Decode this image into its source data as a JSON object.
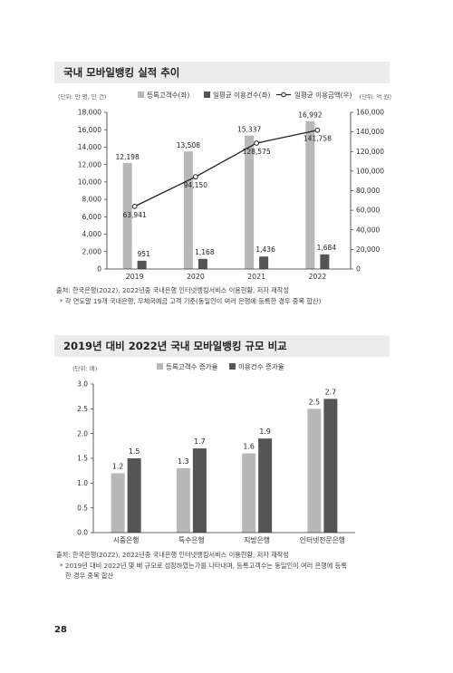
{
  "section1": {
    "title": "국내 모바일뱅킹 실적 추이",
    "source": "출처: 한국은행(2022), 2022년중 국내은행 인터넷뱅킹서비스 이용현황, 저자 재작성",
    "footnote": "* 각 연도말 19개 국내은행, 우체국예금 고객 기준(동일인이 여러 은행에 등록한 경우 중복 합산)"
  },
  "section2": {
    "title": "2019년 대비 2022년 국내 모바일뱅킹 규모 비교",
    "source": "출처: 한국은행(2022), 2022년중 국내은행 인터넷뱅킹서비스 이용현황, 저자 재작성",
    "footnote_line1": "* 2019년 대비 2022년 몇 배 규모로 성장하였는가를 나타내며, 등록고객수는 동일인이 여러 은행에 등록",
    "footnote_line2": "한 경우 중복 합산"
  },
  "page_number": "28",
  "chart_data": [
    {
      "type": "bar",
      "categories": [
        "2019",
        "2020",
        "2021",
        "2022"
      ],
      "series": [
        {
          "name": "등록고객수(좌)",
          "values": [
            12198,
            13508,
            15337,
            16992
          ],
          "labels": [
            "12,198",
            "13,508",
            "15,337",
            "16,992"
          ],
          "color": "#b8b8b8",
          "axis": "left"
        },
        {
          "name": "일평균 이용건수(좌)",
          "values": [
            951,
            1168,
            1436,
            1684
          ],
          "labels": [
            "951",
            "1,168",
            "1,436",
            "1,684"
          ],
          "color": "#555555",
          "axis": "left"
        },
        {
          "name": "일평균 이용금액(우)",
          "type": "line",
          "values": [
            63941,
            94150,
            128575,
            141758
          ],
          "labels": [
            "63,941",
            "94,150",
            "128,575",
            "141,758"
          ],
          "color": "#222222",
          "axis": "right"
        }
      ],
      "ylabel_left": "(단위: 만 명, 만 건)",
      "ylabel_right": "(단위: 억 원)",
      "ylim_left": [
        0,
        18000
      ],
      "ylim_right": [
        0,
        160000
      ],
      "yticks_left": [
        "0",
        "2,000",
        "4,000",
        "6,000",
        "8,000",
        "10,000",
        "12,000",
        "14,000",
        "16,000",
        "18,000"
      ],
      "yticks_right": [
        "0",
        "20,000",
        "40,000",
        "60,000",
        "80,000",
        "100,000",
        "120,000",
        "140,000",
        "160,000"
      ],
      "grid": false,
      "legend": "top"
    },
    {
      "type": "bar",
      "categories": [
        "시중은행",
        "특수은행",
        "지방은행",
        "인터넷전문은행"
      ],
      "series": [
        {
          "name": "등록고객수 증가율",
          "values": [
            1.2,
            1.3,
            1.6,
            2.5
          ],
          "labels": [
            "1.2",
            "1.3",
            "1.6",
            "2.5"
          ],
          "color": "#b8b8b8"
        },
        {
          "name": "이용건수 증가율",
          "values": [
            1.5,
            1.7,
            1.9,
            2.7
          ],
          "labels": [
            "1.5",
            "1.7",
            "1.9",
            "2.7"
          ],
          "color": "#555555"
        }
      ],
      "ylabel": "(단위: 배)",
      "ylim": [
        0,
        3.0
      ],
      "yticks": [
        "0.0",
        "0.5",
        "1.0",
        "1.5",
        "2.0",
        "2.5",
        "3.0"
      ],
      "grid": false,
      "legend": "top"
    }
  ]
}
